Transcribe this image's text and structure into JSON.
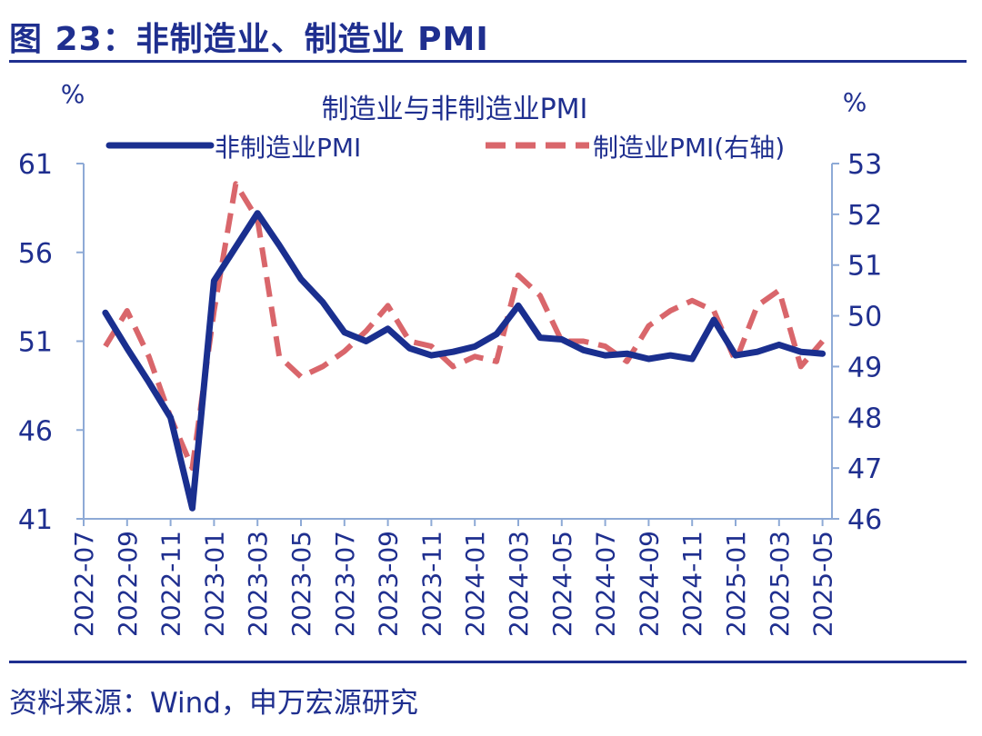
{
  "figure": {
    "title": "图 23：非制造业、制造业 PMI",
    "source": "资料来源：Wind，申万宏源研究"
  },
  "colors": {
    "primary": "#1f2f8f",
    "nonmfg_line": "#1a2f8f",
    "mfg_line": "#d9666b",
    "axis": "#8eaad6"
  },
  "chart_data": {
    "type": "line",
    "title": "制造业与非制造业PMI",
    "ylabel_left": "%",
    "ylabel_right": "%",
    "left_axis": {
      "ylim": [
        41,
        61
      ],
      "ticks": [
        "61",
        "56",
        "51",
        "46",
        "41"
      ]
    },
    "right_axis": {
      "ylim": [
        46,
        53
      ],
      "ticks": [
        "53",
        "52",
        "51",
        "50",
        "49",
        "48",
        "47",
        "46"
      ]
    },
    "x_tick_labels": [
      "2022-07",
      "2022-09",
      "2022-11",
      "2023-01",
      "2023-03",
      "2023-05",
      "2023-07",
      "2023-09",
      "2023-11",
      "2024-01",
      "2024-03",
      "2024-05",
      "2024-07",
      "2024-09",
      "2024-11",
      "2025-01",
      "2025-03",
      "2025-05"
    ],
    "x": [
      "2022-08",
      "2022-09",
      "2022-10",
      "2022-11",
      "2022-12",
      "2023-01",
      "2023-02",
      "2023-03",
      "2023-04",
      "2023-05",
      "2023-06",
      "2023-07",
      "2023-08",
      "2023-09",
      "2023-10",
      "2023-11",
      "2023-12",
      "2024-01",
      "2024-02",
      "2024-03",
      "2024-04",
      "2024-05",
      "2024-06",
      "2024-07",
      "2024-08",
      "2024-09",
      "2024-10",
      "2024-11",
      "2024-12",
      "2025-01",
      "2025-02",
      "2025-03",
      "2025-04",
      "2025-05"
    ],
    "series": [
      {
        "name": "非制造业PMI",
        "axis": "left",
        "style": "solid",
        "values": [
          52.6,
          50.6,
          48.7,
          46.7,
          41.6,
          54.4,
          56.3,
          58.2,
          56.4,
          54.5,
          53.2,
          51.5,
          51.0,
          51.7,
          50.6,
          50.2,
          50.4,
          50.7,
          51.4,
          53.0,
          51.2,
          51.1,
          50.5,
          50.2,
          50.3,
          50.0,
          50.2,
          50.0,
          52.2,
          50.2,
          50.4,
          50.8,
          50.4,
          50.3
        ]
      },
      {
        "name": "制造业PMI(右轴)",
        "axis": "right",
        "style": "dashed",
        "values": [
          49.4,
          50.1,
          49.2,
          48.0,
          47.0,
          50.1,
          52.6,
          51.9,
          49.2,
          48.8,
          49.0,
          49.3,
          49.7,
          50.2,
          49.5,
          49.4,
          49.0,
          49.2,
          49.1,
          50.8,
          50.4,
          49.5,
          49.5,
          49.4,
          49.1,
          49.8,
          50.1,
          50.3,
          50.1,
          49.1,
          50.2,
          50.5,
          49.0,
          49.5
        ]
      }
    ],
    "legend": "top"
  }
}
